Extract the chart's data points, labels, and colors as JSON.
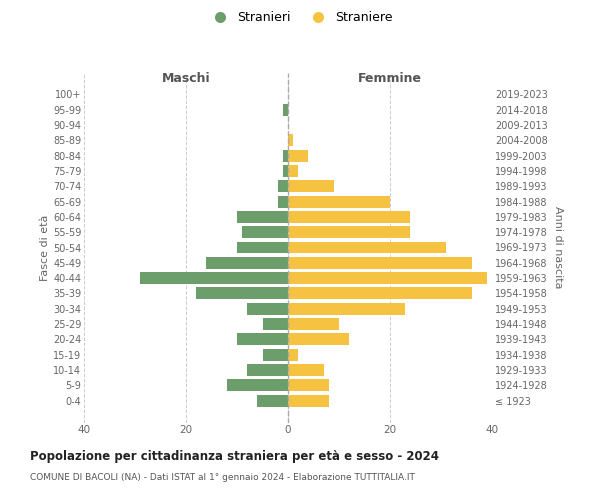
{
  "age_groups": [
    "100+",
    "95-99",
    "90-94",
    "85-89",
    "80-84",
    "75-79",
    "70-74",
    "65-69",
    "60-64",
    "55-59",
    "50-54",
    "45-49",
    "40-44",
    "35-39",
    "30-34",
    "25-29",
    "20-24",
    "15-19",
    "10-14",
    "5-9",
    "0-4"
  ],
  "birth_years": [
    "≤ 1923",
    "1924-1928",
    "1929-1933",
    "1934-1938",
    "1939-1943",
    "1944-1948",
    "1949-1953",
    "1954-1958",
    "1959-1963",
    "1964-1968",
    "1969-1973",
    "1974-1978",
    "1979-1983",
    "1984-1988",
    "1989-1993",
    "1994-1998",
    "1999-2003",
    "2004-2008",
    "2009-2013",
    "2014-2018",
    "2019-2023"
  ],
  "maschi": [
    0,
    1,
    0,
    0,
    1,
    1,
    2,
    2,
    10,
    9,
    10,
    16,
    29,
    18,
    8,
    5,
    10,
    5,
    8,
    12,
    6
  ],
  "femmine": [
    0,
    0,
    0,
    1,
    4,
    2,
    9,
    20,
    24,
    24,
    31,
    36,
    39,
    36,
    23,
    10,
    12,
    2,
    7,
    8,
    8
  ],
  "male_color": "#6b9e6b",
  "female_color": "#f5c242",
  "background_color": "#ffffff",
  "grid_color": "#cccccc",
  "xlim": 40,
  "title": "Popolazione per cittadinanza straniera per età e sesso - 2024",
  "subtitle": "COMUNE DI BACOLI (NA) - Dati ISTAT al 1° gennaio 2024 - Elaborazione TUTTITALIA.IT",
  "ylabel_left": "Fasce di età",
  "ylabel_right": "Anni di nascita",
  "legend_male": "Stranieri",
  "legend_female": "Straniere",
  "header_male": "Maschi",
  "header_female": "Femmine"
}
